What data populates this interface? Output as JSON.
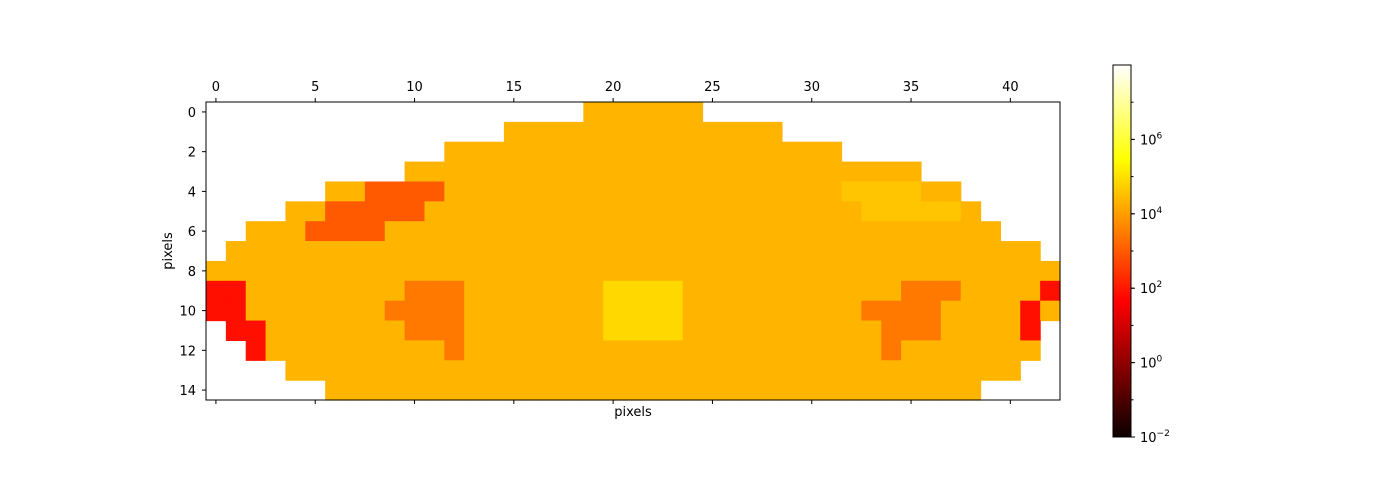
{
  "chart_data": {
    "type": "heatmap",
    "title": "",
    "xlabel": "pixels",
    "ylabel": "pixels",
    "x_ticks": [
      0,
      5,
      10,
      15,
      20,
      25,
      30,
      35,
      40
    ],
    "y_ticks": [
      0,
      2,
      4,
      6,
      8,
      10,
      12,
      14
    ],
    "xlim": [
      -0.5,
      42.5
    ],
    "ylim": [
      14.5,
      -0.5
    ],
    "x_tick_position": "top",
    "grid": false,
    "colormap": "hot",
    "colorbar": {
      "scale": "log",
      "range": [
        0.01,
        100000000
      ],
      "ticks": [
        {
          "base": "10",
          "exp": "−2",
          "value": 0.01
        },
        {
          "base": "10",
          "exp": "0",
          "value": 1
        },
        {
          "base": "10",
          "exp": "2",
          "value": 100
        },
        {
          "base": "10",
          "exp": "4",
          "value": 10000
        },
        {
          "base": "10",
          "exp": "6",
          "value": 1000000
        }
      ]
    },
    "colors": {
      "main": "#ffb400",
      "orange": "#ff7800",
      "dark_orange": "#ff5a00",
      "red": "#ff0f00",
      "light": "#ffc500",
      "yellow": "#ffd800"
    },
    "legend_codes": {
      "M": "main",
      "O": "orange",
      "D": "dark_orange",
      "R": "red",
      "L": "light",
      "Y": "yellow",
      ".": "empty"
    },
    "grid_rows": [
      "...................MMMMMM..................",
      "...............MMMMMMMMMMMMMM..............",
      "............MMMMMMMMMMMMMMMMMMMM...........",
      "..........MMMMMMMMMMMMMMMMMMMMMMMMMM.......",
      "......MMDDDDMMMMMMMMMMMMMMMMMMMMLLLLMM.....",
      "....MMDDDDDMMMMMMMMMMMMMMMMMMMMMMLLLLLM....",
      "..MMMDDDDMMMMMMMMMMMMMMMMMMMMMMMMMMMMMMM...",
      ".MMMMMMMMMMMMMMMMMMMMMMMMMMMMMMMMMMMMMMMMM.",
      "MMMMMMMMMMMMMMMMMMMMMMMMMMMMMMMMMMMMMMMMMMM",
      "RRMMMMMMMMOOOMMMMMMMYYYYMMMMMMMMMMMOOOMMMMR",
      "RRMMMMMMMOOOOMMMMMMMYYYYMMMMMMMMMOOOOMMMMRM",
      ".RRMMMMMMMOOOMMMMMMMYYYYMMMMMMMMMMOOOMMMMR.",
      "..RMMMMMMMMMOMMMMMMMMMMMMMMMMMMMMMOMMMMMMM.",
      "....MMMMMMMMMMMMMMMMMMMMMMMMMMMMMMMMMMMMM..",
      "......MMMMMMMMMMMMMMMMMMMMMMMMMMMMMMMMM...."
    ]
  }
}
